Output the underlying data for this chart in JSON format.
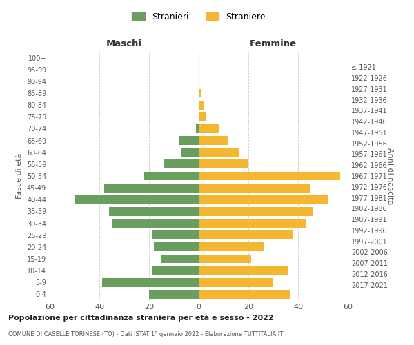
{
  "age_groups": [
    "0-4",
    "5-9",
    "10-14",
    "15-19",
    "20-24",
    "25-29",
    "30-34",
    "35-39",
    "40-44",
    "45-49",
    "50-54",
    "55-59",
    "60-64",
    "65-69",
    "70-74",
    "75-79",
    "80-84",
    "85-89",
    "90-94",
    "95-99",
    "100+"
  ],
  "birth_years": [
    "2017-2021",
    "2012-2016",
    "2007-2011",
    "2002-2006",
    "1997-2001",
    "1992-1996",
    "1987-1991",
    "1982-1986",
    "1977-1981",
    "1972-1976",
    "1967-1971",
    "1962-1966",
    "1957-1961",
    "1952-1956",
    "1947-1951",
    "1942-1946",
    "1937-1941",
    "1932-1936",
    "1927-1931",
    "1922-1926",
    "≤ 1921"
  ],
  "maschi": [
    20,
    39,
    19,
    15,
    18,
    19,
    35,
    36,
    50,
    38,
    22,
    14,
    7,
    8,
    1,
    0,
    0,
    0,
    0,
    0,
    0
  ],
  "femmine": [
    37,
    30,
    36,
    21,
    26,
    38,
    43,
    46,
    52,
    45,
    57,
    20,
    16,
    12,
    8,
    3,
    2,
    1,
    0,
    0,
    0
  ],
  "color_maschi": "#6a9e5e",
  "color_femmine": "#f5b731",
  "title_main": "Popolazione per cittadinanza straniera per età e sesso - 2022",
  "title_sub": "COMUNE DI CASELLE TORINESE (TO) - Dati ISTAT 1° gennaio 2022 - Elaborazione TUTTITALIA.IT",
  "legend_maschi": "Stranieri",
  "legend_femmine": "Straniere",
  "xlabel_left": "Maschi",
  "xlabel_right": "Femmine",
  "ylabel_left": "Fasce di età",
  "ylabel_right": "Anni di nascita",
  "xlim": 60,
  "background_color": "#ffffff",
  "grid_color": "#cccccc"
}
